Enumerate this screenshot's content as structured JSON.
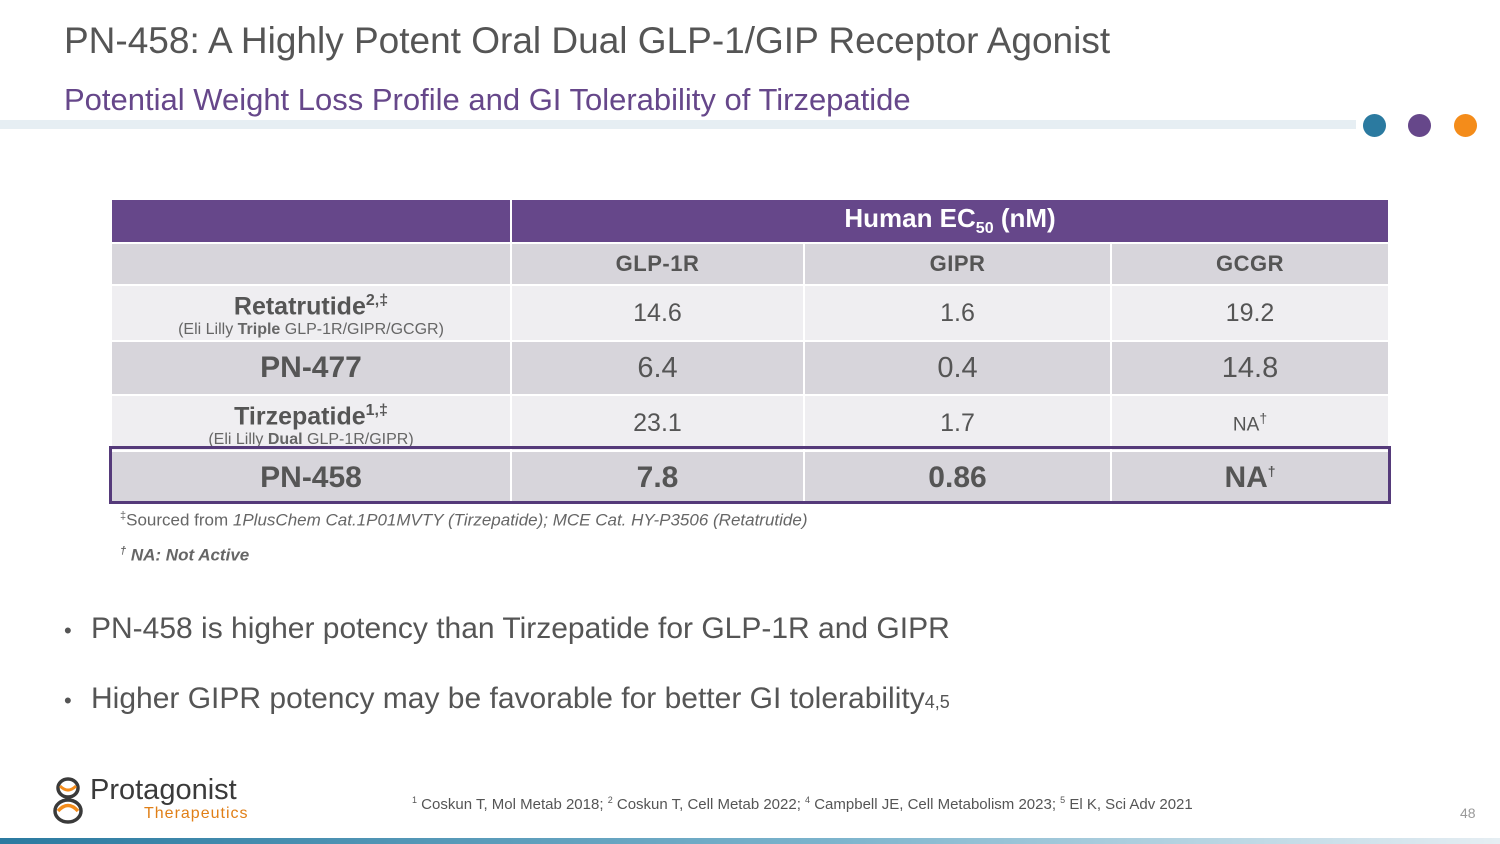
{
  "header": {
    "title": "PN-458: A Highly Potent Oral Dual GLP-1/GIP Receptor Agonist",
    "subtitle": "Potential Weight Loss Profile and GI Tolerability of Tirzepatide"
  },
  "decor": {
    "dot_colors": [
      "#2b7aa0",
      "#66478a",
      "#f48c1a"
    ]
  },
  "table": {
    "group_header": {
      "prefix": "Human EC",
      "subscript": "50",
      "suffix": " (nM)"
    },
    "columns": [
      "GLP-1R",
      "GIPR",
      "GCGR"
    ],
    "rows": {
      "retatrutide": {
        "name": "Retatrutide",
        "sup": "2,‡",
        "desc_prefix": "(Eli Lilly ",
        "desc_bold": "Triple",
        "desc_suffix": " GLP-1R/GIPR/GCGR)",
        "glp1r": "14.6",
        "gipr": "1.6",
        "gcgr": "19.2"
      },
      "pn477": {
        "name": "PN-477",
        "glp1r": "6.4",
        "gipr": "0.4",
        "gcgr": "14.8"
      },
      "tirzepatide": {
        "name": "Tirzepatide",
        "sup": "1,‡",
        "desc_prefix": "(Eli Lilly ",
        "desc_bold": "Dual",
        "desc_suffix": " GLP-1R/GIPR)",
        "glp1r": "23.1",
        "gipr": "1.7",
        "gcgr": "NA",
        "gcgr_sup": "†"
      },
      "pn458": {
        "name": "PN-458",
        "glp1r": "7.8",
        "gipr": "0.86",
        "gcgr": "NA",
        "gcgr_sup": "†"
      }
    }
  },
  "notes": {
    "source_sup": "‡",
    "source_prefix": "Sourced from ",
    "source_italic": "1PlusChem Cat.1P01MVTY (Tirzepatide); MCE Cat. HY-P3506 (Retatrutide)",
    "na_sup": "†",
    "na_text": " NA: Not Active"
  },
  "bullets": {
    "marker": "•",
    "b1": "PN-458 is higher potency than Tirzepatide for GLP-1R and GIPR",
    "b2": "Higher GIPR potency may be favorable for better GI tolerability",
    "b2_sup": "4,5"
  },
  "logo": {
    "name": "Protagonist",
    "tagline": "Therapeutics"
  },
  "references": {
    "r1_sup": "1",
    "r1": " Coskun T, Mol Metab 2018; ",
    "r2_sup": "2",
    "r2": " Coskun T, Cell Metab 2022; ",
    "r4_sup": "4",
    "r4": " Campbell JE, Cell Metabolism 2023; ",
    "r5_sup": "5",
    "r5": " El K, Sci Adv 2021"
  },
  "page_number": "48"
}
